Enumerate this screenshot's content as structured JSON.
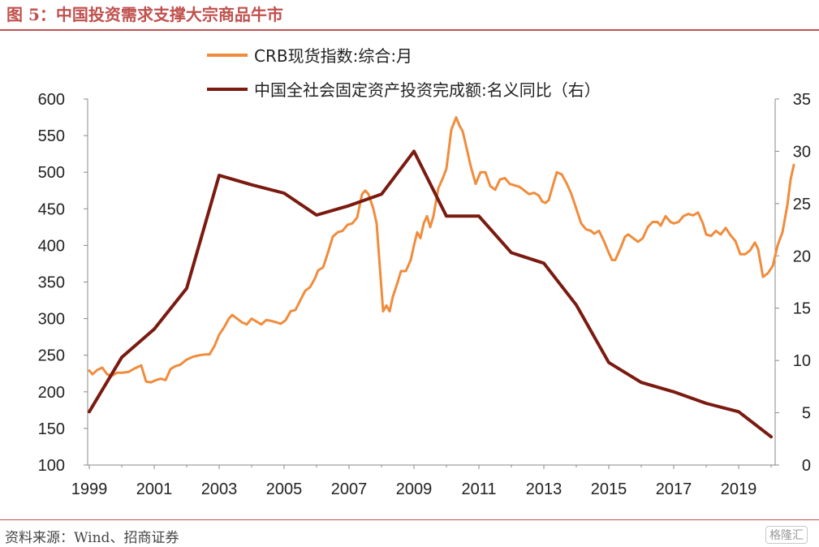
{
  "header": {
    "title": "图 5：中国投资需求支撑大宗商品牛市"
  },
  "footer": {
    "source": "资料来源：Wind、招商证券",
    "watermark": "格隆汇"
  },
  "chart_data": {
    "type": "line",
    "x_ticks": [
      "1999",
      "2001",
      "2003",
      "2005",
      "2007",
      "2009",
      "2011",
      "2013",
      "2015",
      "2017",
      "2019"
    ],
    "y_left_ticks": [
      "600",
      "550",
      "500",
      "450",
      "400",
      "350",
      "300",
      "250",
      "200",
      "150",
      "100"
    ],
    "y_right_ticks": [
      "35",
      "30",
      "25",
      "20",
      "15",
      "10",
      "5",
      "0"
    ],
    "ylim_left": [
      100,
      600
    ],
    "ylim_right": [
      0,
      35
    ],
    "xlim": [
      1999,
      2020.5
    ],
    "legend_position": "top",
    "grid": false,
    "series": [
      {
        "name": "CRB现货指数:综合:月",
        "axis": "left",
        "color": "#f08c3c",
        "points": [
          [
            1999.0,
            229
          ],
          [
            1999.1,
            224
          ],
          [
            1999.25,
            230
          ],
          [
            1999.4,
            233
          ],
          [
            1999.55,
            224
          ],
          [
            1999.7,
            222
          ],
          [
            1999.85,
            226
          ],
          [
            2000.0,
            226
          ],
          [
            2000.2,
            227
          ],
          [
            2000.4,
            232
          ],
          [
            2000.6,
            236
          ],
          [
            2000.75,
            214
          ],
          [
            2000.9,
            213
          ],
          [
            2001.05,
            216
          ],
          [
            2001.2,
            218
          ],
          [
            2001.35,
            216
          ],
          [
            2001.5,
            231
          ],
          [
            2001.65,
            235
          ],
          [
            2001.8,
            237
          ],
          [
            2002.0,
            244
          ],
          [
            2002.2,
            248
          ],
          [
            2002.4,
            250
          ],
          [
            2002.55,
            251
          ],
          [
            2002.7,
            251
          ],
          [
            2002.85,
            262
          ],
          [
            2003.0,
            278
          ],
          [
            2003.15,
            288
          ],
          [
            2003.3,
            300
          ],
          [
            2003.4,
            305
          ],
          [
            2003.55,
            300
          ],
          [
            2003.7,
            295
          ],
          [
            2003.85,
            292
          ],
          [
            2004.0,
            300
          ],
          [
            2004.15,
            296
          ],
          [
            2004.3,
            292
          ],
          [
            2004.45,
            298
          ],
          [
            2004.6,
            297
          ],
          [
            2004.75,
            295
          ],
          [
            2004.9,
            293
          ],
          [
            2005.05,
            298
          ],
          [
            2005.2,
            310
          ],
          [
            2005.35,
            312
          ],
          [
            2005.5,
            325
          ],
          [
            2005.65,
            338
          ],
          [
            2005.8,
            343
          ],
          [
            2005.95,
            355
          ],
          [
            2006.05,
            366
          ],
          [
            2006.2,
            370
          ],
          [
            2006.35,
            390
          ],
          [
            2006.5,
            412
          ],
          [
            2006.65,
            418
          ],
          [
            2006.8,
            420
          ],
          [
            2006.95,
            428
          ],
          [
            2007.1,
            430
          ],
          [
            2007.25,
            438
          ],
          [
            2007.4,
            470
          ],
          [
            2007.5,
            475
          ],
          [
            2007.6,
            470
          ],
          [
            2007.75,
            450
          ],
          [
            2007.85,
            430
          ],
          [
            2007.95,
            370
          ],
          [
            2008.05,
            310
          ],
          [
            2008.15,
            318
          ],
          [
            2008.25,
            310
          ],
          [
            2008.35,
            330
          ],
          [
            2008.5,
            350
          ],
          [
            2008.6,
            365
          ],
          [
            2008.75,
            365
          ],
          [
            2008.9,
            380
          ],
          [
            2009.0,
            400
          ],
          [
            2009.1,
            418
          ],
          [
            2009.2,
            410
          ],
          [
            2009.3,
            430
          ],
          [
            2009.4,
            440
          ],
          [
            2009.5,
            425
          ],
          [
            2009.6,
            440
          ],
          [
            2009.75,
            478
          ],
          [
            2009.9,
            493
          ],
          [
            2010.0,
            505
          ],
          [
            2010.15,
            558
          ],
          [
            2010.3,
            575
          ],
          [
            2010.4,
            564
          ],
          [
            2010.5,
            556
          ],
          [
            2010.6,
            537
          ],
          [
            2010.75,
            508
          ],
          [
            2010.9,
            484
          ],
          [
            2011.05,
            500
          ],
          [
            2011.2,
            500
          ],
          [
            2011.35,
            481
          ],
          [
            2011.5,
            476
          ],
          [
            2011.65,
            490
          ],
          [
            2011.8,
            492
          ],
          [
            2011.95,
            484
          ],
          [
            2012.1,
            482
          ],
          [
            2012.25,
            480
          ],
          [
            2012.4,
            475
          ],
          [
            2012.55,
            470
          ],
          [
            2012.7,
            472
          ],
          [
            2012.85,
            468
          ],
          [
            2012.95,
            460
          ],
          [
            2013.05,
            458
          ],
          [
            2013.15,
            462
          ],
          [
            2013.3,
            485
          ],
          [
            2013.4,
            500
          ],
          [
            2013.55,
            497
          ],
          [
            2013.7,
            485
          ],
          [
            2013.85,
            470
          ],
          [
            2014.0,
            450
          ],
          [
            2014.15,
            430
          ],
          [
            2014.3,
            422
          ],
          [
            2014.45,
            420
          ],
          [
            2014.55,
            416
          ],
          [
            2014.7,
            420
          ],
          [
            2014.85,
            406
          ],
          [
            2015.0,
            390
          ],
          [
            2015.1,
            380
          ],
          [
            2015.2,
            380
          ],
          [
            2015.35,
            395
          ],
          [
            2015.5,
            412
          ],
          [
            2015.6,
            415
          ],
          [
            2015.75,
            410
          ],
          [
            2015.9,
            405
          ],
          [
            2016.05,
            410
          ],
          [
            2016.2,
            425
          ],
          [
            2016.35,
            432
          ],
          [
            2016.5,
            432
          ],
          [
            2016.6,
            427
          ],
          [
            2016.75,
            440
          ],
          [
            2016.9,
            432
          ],
          [
            2017.0,
            430
          ],
          [
            2017.15,
            432
          ],
          [
            2017.3,
            440
          ],
          [
            2017.45,
            443
          ],
          [
            2017.6,
            441
          ],
          [
            2017.75,
            445
          ],
          [
            2017.9,
            430
          ],
          [
            2018.0,
            415
          ],
          [
            2018.15,
            413
          ],
          [
            2018.3,
            420
          ],
          [
            2018.45,
            415
          ],
          [
            2018.6,
            424
          ],
          [
            2018.75,
            414
          ],
          [
            2018.9,
            406
          ],
          [
            2019.05,
            388
          ],
          [
            2019.2,
            388
          ],
          [
            2019.35,
            393
          ],
          [
            2019.5,
            404
          ],
          [
            2019.6,
            395
          ],
          [
            2019.75,
            357
          ],
          [
            2019.9,
            362
          ],
          [
            2020.05,
            372
          ],
          [
            2020.2,
            400
          ],
          [
            2020.35,
            418
          ],
          [
            2020.5,
            455
          ],
          [
            2020.6,
            490
          ],
          [
            2020.7,
            510
          ]
        ]
      },
      {
        "name": "中国全社会固定资产投资完成额:名义同比（右）",
        "axis": "right",
        "color": "#7a1a10",
        "points": [
          [
            1999.0,
            5.1
          ],
          [
            2000.0,
            10.3
          ],
          [
            2001.0,
            13.0
          ],
          [
            2002.0,
            16.9
          ],
          [
            2003.0,
            27.7
          ],
          [
            2004.0,
            26.8
          ],
          [
            2005.0,
            26.0
          ],
          [
            2006.0,
            23.9
          ],
          [
            2007.0,
            24.8
          ],
          [
            2008.0,
            25.9
          ],
          [
            2009.0,
            30.0
          ],
          [
            2010.0,
            23.8
          ],
          [
            2011.0,
            23.8
          ],
          [
            2012.0,
            20.3
          ],
          [
            2013.0,
            19.3
          ],
          [
            2014.0,
            15.3
          ],
          [
            2015.0,
            9.8
          ],
          [
            2016.0,
            7.9
          ],
          [
            2017.0,
            7.0
          ],
          [
            2018.0,
            5.9
          ],
          [
            2019.0,
            5.1
          ],
          [
            2020.0,
            2.7
          ]
        ]
      }
    ]
  }
}
